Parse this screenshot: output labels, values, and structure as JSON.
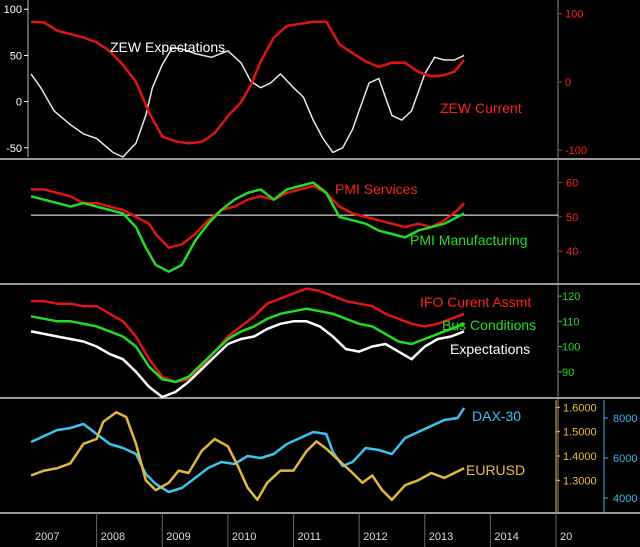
{
  "chart_data": [
    {
      "type": "line",
      "panel": "zew",
      "title": "",
      "x_range": [
        2007.0,
        2015.0
      ],
      "axes": {
        "left": {
          "range": [
            -60,
            110
          ],
          "ticks": [
            "100",
            "50",
            "0",
            "-50"
          ],
          "tick_values": [
            100,
            50,
            0,
            -50
          ],
          "color": "#ffffff"
        },
        "right": {
          "range": [
            -110,
            120
          ],
          "ticks": [
            "100",
            "0",
            "-100"
          ],
          "tick_values": [
            100,
            0,
            -100
          ],
          "color": "#ff2020"
        }
      },
      "series": [
        {
          "name": "ZEW Expectations",
          "axis": "left",
          "color": "#e8e8e8",
          "x": [
            2007.0,
            2007.15,
            2007.35,
            2007.6,
            2007.8,
            2008.0,
            2008.25,
            2008.4,
            2008.6,
            2008.75,
            2008.85,
            2009.0,
            2009.15,
            2009.3,
            2009.5,
            2009.75,
            2010.0,
            2010.2,
            2010.35,
            2010.5,
            2010.65,
            2010.8,
            2011.0,
            2011.15,
            2011.3,
            2011.45,
            2011.6,
            2011.75,
            2011.9,
            2012.0,
            2012.15,
            2012.3,
            2012.5,
            2012.65,
            2012.8,
            2013.0,
            2013.15,
            2013.3,
            2013.45,
            2013.6
          ],
          "y": [
            30,
            15,
            -10,
            -25,
            -35,
            -40,
            -55,
            -60,
            -45,
            -15,
            15,
            40,
            58,
            57,
            52,
            48,
            55,
            42,
            22,
            15,
            20,
            30,
            15,
            5,
            -20,
            -40,
            -55,
            -50,
            -30,
            -10,
            20,
            25,
            -15,
            -20,
            -10,
            30,
            48,
            45,
            45,
            50
          ]
        },
        {
          "name": "ZEW Current",
          "axis": "right",
          "color": "#e01414",
          "x": [
            2007.0,
            2007.2,
            2007.4,
            2007.6,
            2007.8,
            2008.0,
            2008.2,
            2008.4,
            2008.6,
            2008.8,
            2009.0,
            2009.2,
            2009.4,
            2009.6,
            2009.8,
            2010.0,
            2010.2,
            2010.35,
            2010.5,
            2010.7,
            2010.9,
            2011.1,
            2011.3,
            2011.5,
            2011.7,
            2011.9,
            2012.1,
            2012.3,
            2012.5,
            2012.7,
            2012.9,
            2013.1,
            2013.3,
            2013.45,
            2013.6
          ],
          "y": [
            88,
            87,
            75,
            70,
            65,
            58,
            45,
            25,
            0,
            -45,
            -80,
            -87,
            -90,
            -88,
            -75,
            -50,
            -30,
            -5,
            30,
            65,
            82,
            85,
            88,
            88,
            55,
            42,
            30,
            22,
            28,
            28,
            15,
            8,
            10,
            15,
            32
          ]
        }
      ]
    },
    {
      "type": "line",
      "panel": "pmi",
      "title": "",
      "x_range": [
        2007.0,
        2015.0
      ],
      "axes": {
        "right": {
          "range": [
            31,
            66
          ],
          "ticks": [
            "60",
            "50",
            "40"
          ],
          "tick_values": [
            60,
            50,
            40
          ],
          "color": "#ff2020"
        }
      },
      "reference_line": 50.5,
      "series": [
        {
          "name": "PMI Services",
          "axis": "right",
          "color": "#e01414",
          "x": [
            2007.0,
            2007.2,
            2007.4,
            2007.6,
            2007.8,
            2008.0,
            2008.2,
            2008.4,
            2008.6,
            2008.8,
            2008.9,
            2009.1,
            2009.3,
            2009.5,
            2009.7,
            2009.9,
            2010.1,
            2010.3,
            2010.5,
            2010.7,
            2010.9,
            2011.1,
            2011.3,
            2011.5,
            2011.7,
            2011.9,
            2012.1,
            2012.3,
            2012.5,
            2012.7,
            2012.9,
            2013.1,
            2013.3,
            2013.5,
            2013.6
          ],
          "y": [
            58,
            58,
            57,
            56,
            54,
            54,
            53,
            52,
            50,
            48,
            45,
            41,
            42,
            45,
            49,
            52,
            53,
            55,
            56,
            55,
            57,
            58,
            59,
            57,
            53,
            51,
            50,
            49,
            48,
            47,
            48,
            47,
            49,
            52,
            54
          ]
        },
        {
          "name": "PMI Manufacturing",
          "axis": "right",
          "color": "#22dd22",
          "x": [
            2007.0,
            2007.2,
            2007.4,
            2007.6,
            2007.8,
            2008.0,
            2008.2,
            2008.4,
            2008.6,
            2008.75,
            2008.9,
            2009.1,
            2009.3,
            2009.5,
            2009.7,
            2009.9,
            2010.1,
            2010.3,
            2010.5,
            2010.7,
            2010.9,
            2011.1,
            2011.3,
            2011.5,
            2011.7,
            2011.9,
            2012.1,
            2012.3,
            2012.5,
            2012.7,
            2012.9,
            2013.1,
            2013.3,
            2013.5,
            2013.6
          ],
          "y": [
            56,
            55,
            54,
            53,
            54,
            53,
            52,
            51,
            47,
            41,
            36,
            34,
            36,
            43,
            48,
            52,
            55,
            57,
            58,
            55,
            58,
            59,
            60,
            57,
            50,
            49,
            48,
            46,
            45,
            44,
            46,
            47,
            48,
            50,
            51
          ]
        }
      ]
    },
    {
      "type": "line",
      "panel": "ifo",
      "title": "",
      "x_range": [
        2007.0,
        2015.0
      ],
      "axes": {
        "right": {
          "range": [
            80,
            124
          ],
          "ticks": [
            "120",
            "110",
            "100",
            "90"
          ],
          "tick_values": [
            120,
            110,
            100,
            90
          ],
          "color": "#22dd22"
        }
      },
      "series": [
        {
          "name": "IFO Curent Assmt",
          "axis": "right",
          "color": "#e01414",
          "x": [
            2007.0,
            2007.2,
            2007.4,
            2007.6,
            2007.8,
            2008.0,
            2008.2,
            2008.4,
            2008.6,
            2008.8,
            2009.0,
            2009.2,
            2009.4,
            2009.6,
            2009.8,
            2010.0,
            2010.2,
            2010.4,
            2010.6,
            2010.8,
            2011.0,
            2011.2,
            2011.4,
            2011.6,
            2011.8,
            2012.0,
            2012.2,
            2012.4,
            2012.6,
            2012.8,
            2013.0,
            2013.2,
            2013.4,
            2013.6
          ],
          "y": [
            118,
            118,
            117,
            117,
            116,
            116,
            113,
            110,
            104,
            95,
            88,
            86,
            87,
            92,
            98,
            104,
            108,
            112,
            117,
            119,
            121,
            123,
            122,
            120,
            118,
            117,
            116,
            113,
            111,
            109,
            108,
            109,
            111,
            113
          ]
        },
        {
          "name": "Bus Conditions",
          "axis": "right",
          "color": "#22dd22",
          "x": [
            2007.0,
            2007.2,
            2007.4,
            2007.6,
            2007.8,
            2008.0,
            2008.2,
            2008.4,
            2008.6,
            2008.8,
            2009.0,
            2009.2,
            2009.4,
            2009.6,
            2009.8,
            2010.0,
            2010.2,
            2010.4,
            2010.6,
            2010.8,
            2011.0,
            2011.2,
            2011.4,
            2011.6,
            2011.8,
            2012.0,
            2012.2,
            2012.4,
            2012.6,
            2012.8,
            2013.0,
            2013.2,
            2013.4,
            2013.6
          ],
          "y": [
            112,
            111,
            110,
            110,
            109,
            108,
            106,
            104,
            100,
            92,
            87,
            86,
            88,
            93,
            98,
            103,
            106,
            108,
            111,
            113,
            114,
            115,
            114,
            113,
            111,
            109,
            108,
            105,
            102,
            101,
            103,
            105,
            107,
            109
          ]
        },
        {
          "name": "Expectations",
          "axis": "right",
          "color": "#ffffff",
          "x": [
            2007.0,
            2007.2,
            2007.4,
            2007.6,
            2007.8,
            2008.0,
            2008.2,
            2008.4,
            2008.6,
            2008.8,
            2009.0,
            2009.2,
            2009.4,
            2009.6,
            2009.8,
            2010.0,
            2010.2,
            2010.4,
            2010.6,
            2010.8,
            2011.0,
            2011.2,
            2011.4,
            2011.6,
            2011.8,
            2012.0,
            2012.2,
            2012.4,
            2012.6,
            2012.8,
            2013.0,
            2013.2,
            2013.4,
            2013.6
          ],
          "y": [
            106,
            105,
            104,
            103,
            102,
            100,
            97,
            95,
            90,
            84,
            80,
            82,
            86,
            91,
            96,
            101,
            103,
            104,
            107,
            109,
            110,
            110,
            108,
            104,
            99,
            98,
            100,
            101,
            98,
            95,
            100,
            103,
            104,
            106
          ]
        }
      ]
    },
    {
      "type": "line",
      "panel": "dax_eurusd",
      "title": "",
      "x_range": [
        2007.0,
        2015.0
      ],
      "axes": {
        "left": {
          "range": [
            1.17,
            1.63
          ],
          "ticks": [
            "1.6000",
            "1.5000",
            "1.4000",
            "1.3000"
          ],
          "tick_values": [
            1.6,
            1.5,
            1.4,
            1.3
          ],
          "color": "#e8c040"
        },
        "right": {
          "range": [
            3300,
            8900
          ],
          "ticks": [
            "8000",
            "6000",
            "4000"
          ],
          "tick_values": [
            8000,
            6000,
            4000
          ],
          "color": "#3cb8e8"
        }
      },
      "series": [
        {
          "name": "DAX-30",
          "axis": "right",
          "color": "#3cc4ee",
          "x": [
            2007.0,
            2007.2,
            2007.4,
            2007.6,
            2007.8,
            2008.0,
            2008.2,
            2008.4,
            2008.6,
            2008.75,
            2008.9,
            2009.1,
            2009.3,
            2009.5,
            2009.7,
            2009.9,
            2010.1,
            2010.3,
            2010.5,
            2010.7,
            2010.9,
            2011.1,
            2011.3,
            2011.5,
            2011.6,
            2011.75,
            2011.9,
            2012.1,
            2012.3,
            2012.5,
            2012.7,
            2012.9,
            2013.1,
            2013.3,
            2013.5,
            2013.6
          ],
          "y": [
            6800,
            7100,
            7400,
            7500,
            7700,
            7200,
            6700,
            6500,
            6200,
            5200,
            4700,
            4300,
            4500,
            5000,
            5500,
            5800,
            5700,
            6100,
            6000,
            6200,
            6700,
            7000,
            7300,
            7200,
            6300,
            5600,
            5800,
            6500,
            6400,
            6200,
            7000,
            7300,
            7600,
            7900,
            8000,
            8500
          ]
        },
        {
          "name": "EURUSD",
          "axis": "left",
          "color": "#e0b840",
          "x": [
            2007.0,
            2007.2,
            2007.4,
            2007.6,
            2007.8,
            2008.0,
            2008.1,
            2008.3,
            2008.45,
            2008.6,
            2008.75,
            2008.9,
            2009.1,
            2009.25,
            2009.4,
            2009.6,
            2009.8,
            2010.0,
            2010.15,
            2010.3,
            2010.45,
            2010.6,
            2010.8,
            2011.0,
            2011.2,
            2011.35,
            2011.5,
            2011.7,
            2011.9,
            2012.05,
            2012.2,
            2012.35,
            2012.5,
            2012.7,
            2012.9,
            2013.1,
            2013.3,
            2013.45,
            2013.6
          ],
          "y": [
            1.32,
            1.34,
            1.35,
            1.37,
            1.45,
            1.47,
            1.54,
            1.58,
            1.56,
            1.45,
            1.3,
            1.26,
            1.29,
            1.34,
            1.33,
            1.42,
            1.47,
            1.44,
            1.36,
            1.27,
            1.22,
            1.29,
            1.34,
            1.34,
            1.42,
            1.46,
            1.43,
            1.38,
            1.33,
            1.29,
            1.32,
            1.26,
            1.22,
            1.28,
            1.3,
            1.33,
            1.31,
            1.33,
            1.35
          ]
        }
      ]
    }
  ],
  "x_axis": {
    "year_labels": [
      "2007",
      "2008",
      "2009",
      "2010",
      "2011",
      "2012",
      "2013",
      "2014",
      "20"
    ]
  },
  "labels": {
    "zew_expectations": "ZEW Expectations",
    "zew_current": "ZEW Current",
    "pmi_services": "PMI Services",
    "pmi_manufacturing": "PMI Manufacturing",
    "ifo_current": "IFO Curent Assmt",
    "bus_conditions": "Bus Conditions",
    "expectations": "Expectations",
    "dax": "DAX-30",
    "eurusd": "EURUSD"
  }
}
